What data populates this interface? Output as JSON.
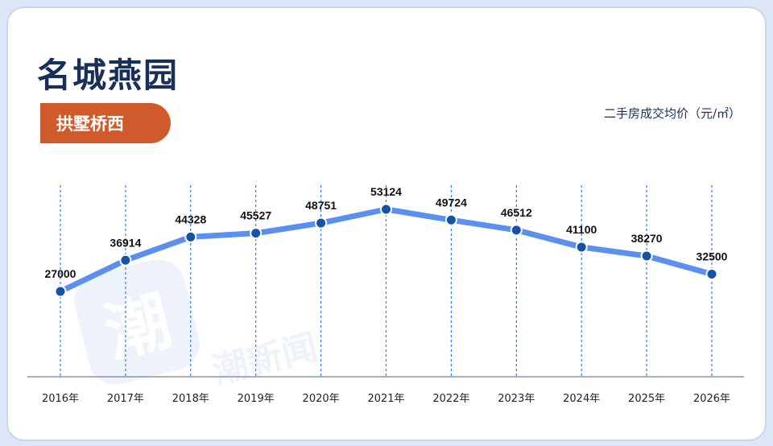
{
  "header": {
    "title": "名城燕园",
    "badge": "拱墅桥西",
    "unit_label": "二手房成交均价（元/㎡）"
  },
  "watermark": {
    "glyph": "潮",
    "text": "潮新闻"
  },
  "colors": {
    "line": "#5b8ff0",
    "point": "#1553a6",
    "gridline": "#3a78d6",
    "badge": "#d05a2b",
    "title": "#1a2f57"
  },
  "chart_data": {
    "type": "line",
    "categories": [
      "2016年",
      "2017年",
      "2018年",
      "2019年",
      "2020年",
      "2021年",
      "2022年",
      "2023年",
      "2024年",
      "2025年",
      "2026年"
    ],
    "series": [
      {
        "values": [
          27000,
          36914,
          44328,
          45527,
          48751,
          53124,
          49724,
          46512,
          41100,
          38270,
          32500
        ]
      }
    ],
    "title": "",
    "xlabel": "",
    "ylabel": "二手房成交均价（元/㎡）",
    "grid": "vertical dashed",
    "data_labels": true
  }
}
